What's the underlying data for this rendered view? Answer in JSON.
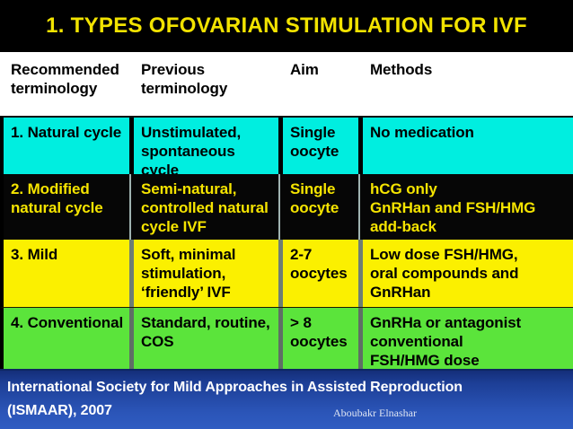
{
  "title": "1. TYPES OFOVARIAN STIMULATION FOR IVF",
  "table": {
    "headers": [
      "Recommended\nterminology",
      "Previous\nterminology",
      "Aim",
      "Methods"
    ],
    "rows": [
      {
        "cells": [
          "1. Natural cycle",
          "Unstimulated,\nspontaneous\ncycle",
          "Single\noocyte",
          "No medication"
        ],
        "bg": "#00EEE0",
        "text_color": "#000000"
      },
      {
        "cells": [
          "2. Modified\nnatural cycle",
          "Semi-natural,\ncontrolled natural\ncycle IVF",
          "Single\noocyte",
          "hCG only\nGnRHan and FSH/HMG\nadd-back"
        ],
        "bg": "#060606",
        "text_color": "#F5E400"
      },
      {
        "cells": [
          "3. Mild",
          "Soft, minimal\nstimulation,\n‘friendly’ IVF",
          "2-7\noocytes",
          "Low dose FSH/HMG,\noral compounds and\nGnRHan"
        ],
        "bg": "#FBF000",
        "text_color": "#000000"
      },
      {
        "cells": [
          "4. Conventional",
          "Standard, routine,\nCOS",
          "> 8\noocytes",
          "GnRHa or antagonist\nconventional\nFSH/HMG dose"
        ],
        "bg": "#5BE43B",
        "text_color": "#000000"
      }
    ]
  },
  "footer": {
    "citation": "International Society for Mild Approaches in Assisted Reproduction (ISMAAR), 2007",
    "author": "Aboubakr Elnashar"
  },
  "colors": {
    "slide_background": "#000000",
    "title_text": "#F2E300",
    "header_row_bg": "#FFFFFF",
    "header_row_text": "#000000",
    "row_natural_bg": "#00EEE0",
    "row_modified_bg": "#060606",
    "row_modified_text": "#F5E400",
    "row_mild_bg": "#FBF000",
    "row_conventional_bg": "#5BE43B",
    "footer_gradient_top": "#142E7A",
    "footer_gradient_bottom": "#2F5CC2",
    "footer_text": "#FFFFFF"
  }
}
